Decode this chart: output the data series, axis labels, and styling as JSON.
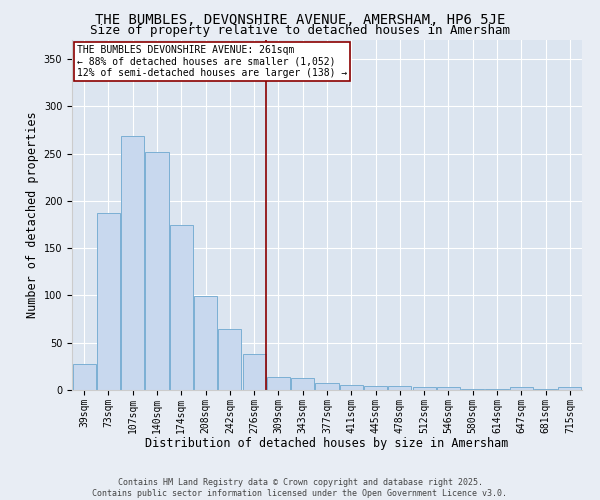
{
  "title": "THE BUMBLES, DEVONSHIRE AVENUE, AMERSHAM, HP6 5JE",
  "subtitle": "Size of property relative to detached houses in Amersham",
  "xlabel": "Distribution of detached houses by size in Amersham",
  "ylabel": "Number of detached properties",
  "categories": [
    "39sqm",
    "73sqm",
    "107sqm",
    "140sqm",
    "174sqm",
    "208sqm",
    "242sqm",
    "276sqm",
    "309sqm",
    "343sqm",
    "377sqm",
    "411sqm",
    "445sqm",
    "478sqm",
    "512sqm",
    "546sqm",
    "580sqm",
    "614sqm",
    "647sqm",
    "681sqm",
    "715sqm"
  ],
  "values": [
    28,
    187,
    268,
    252,
    174,
    99,
    65,
    38,
    14,
    13,
    7,
    5,
    4,
    4,
    3,
    3,
    1,
    1,
    3,
    1,
    3
  ],
  "bar_color": "#c8d8ee",
  "bar_edge_color": "#7bafd4",
  "highlight_color": "#8b0000",
  "annotation_text": "THE BUMBLES DEVONSHIRE AVENUE: 261sqm\n← 88% of detached houses are smaller (1,052)\n12% of semi-detached houses are larger (138) →",
  "annotation_box_color": "white",
  "annotation_box_edge_color": "#8b0000",
  "vertical_line_x": 7.5,
  "ylim": [
    0,
    370
  ],
  "yticks": [
    0,
    50,
    100,
    150,
    200,
    250,
    300,
    350
  ],
  "background_color": "#e8edf4",
  "plot_bg_color": "#dce5f0",
  "footer_text": "Contains HM Land Registry data © Crown copyright and database right 2025.\nContains public sector information licensed under the Open Government Licence v3.0.",
  "title_fontsize": 10,
  "subtitle_fontsize": 9,
  "tick_fontsize": 7,
  "label_fontsize": 8.5,
  "annotation_fontsize": 7,
  "footer_fontsize": 6
}
